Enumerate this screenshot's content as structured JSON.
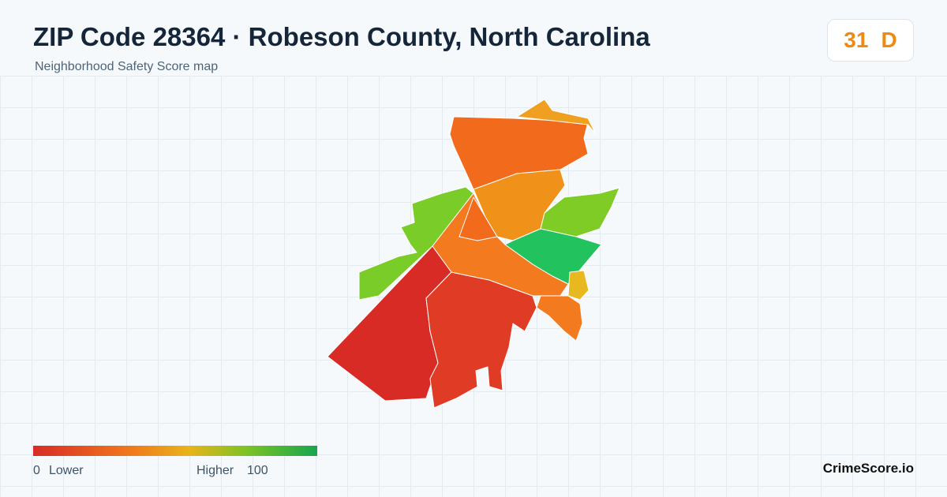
{
  "header": {
    "title": "ZIP Code 28364 · Robeson County, North Carolina",
    "subtitle": "Neighborhood Safety Score map"
  },
  "score": {
    "value": 31,
    "grade": "D"
  },
  "legend": {
    "min": 0,
    "min_label": "Lower",
    "max_label": "Higher",
    "max": 100
  },
  "brand": "CrimeScore.io"
}
